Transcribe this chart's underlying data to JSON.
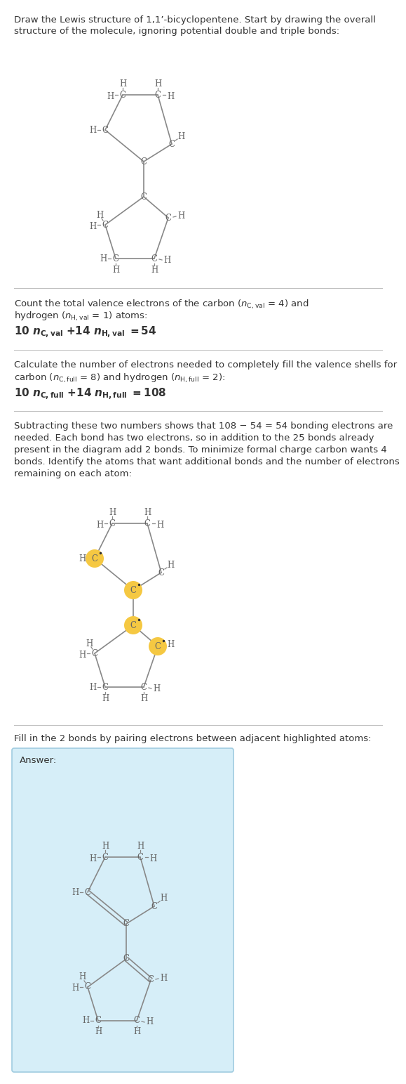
{
  "bg_color": "#ffffff",
  "text_color": "#333333",
  "bond_color": "#888888",
  "atom_color": "#666666",
  "highlight_color": "#f5c842",
  "answer_box_color": "#d6eef8",
  "answer_box_border": "#a0cce0",
  "sep_color": "#bbbbbb",
  "title_line1": "Draw the Lewis structure of 1,1’-bicyclopentene. Start by drawing the overall",
  "title_line2": "structure of the molecule, ignoring potential double and triple bonds:",
  "s2_line1": "Count the total valence electrons of the carbon (",
  "s2_line2": "hydrogen (",
  "s2_line3": "10 ",
  "s3_line1": "Calculate the number of electrons needed to completely fill the valence shells for",
  "s3_line2": "carbon (",
  "s3_line3": "10 ",
  "s4_line1": "Subtracting these two numbers shows that 108 − 54 = 54 bonding electrons are",
  "s4_line2": "needed. Each bond has two electrons, so in addition to the 25 bonds already",
  "s4_line3": "present in the diagram add 2 bonds. To minimize formal charge carbon wants 4",
  "s4_line4": "bonds. Identify the atoms that want additional bonds and the number of electrons",
  "s4_line5": "remaining on each atom:",
  "s5_line1": "Fill in the 2 bonds by pairing electrons between adjacent highlighted atoms:",
  "answer_label": "Answer:"
}
